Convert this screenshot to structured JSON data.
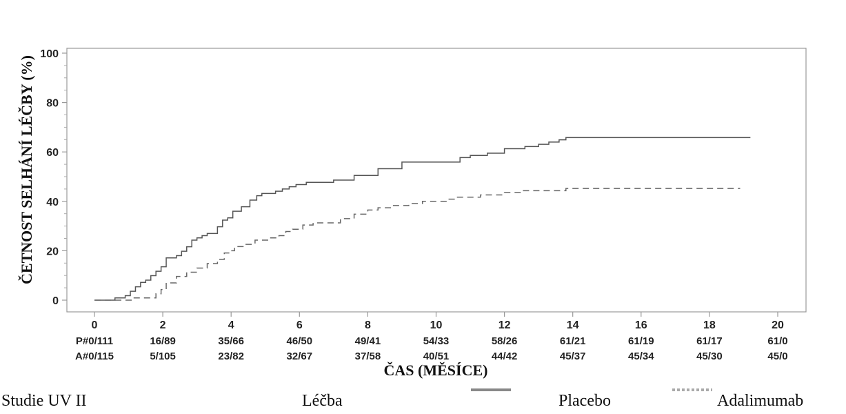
{
  "chart_data": {
    "type": "line",
    "title": "",
    "xlabel": "ČAS (MĚSÍCE)",
    "ylabel": "ČETNOST SELHÁNÍ LÉČBY (%)",
    "xlim": [
      0,
      20
    ],
    "ylim": [
      0,
      100
    ],
    "x_ticks": [
      "0",
      "2",
      "4",
      "6",
      "8",
      "10",
      "12",
      "14",
      "16",
      "18",
      "20"
    ],
    "y_ticks": [
      "0",
      "20",
      "40",
      "60",
      "80",
      "100"
    ],
    "grid": false,
    "series": [
      {
        "name": "Placebo",
        "style": "solid",
        "color": "#555555",
        "x": [
          0,
          0.6,
          0.9,
          1.05,
          1.2,
          1.35,
          1.5,
          1.65,
          1.8,
          1.95,
          2.1,
          2.4,
          2.55,
          2.7,
          2.85,
          3.0,
          3.15,
          3.3,
          3.6,
          3.75,
          3.9,
          4.05,
          4.3,
          4.55,
          4.75,
          4.9,
          5.3,
          5.5,
          5.7,
          5.9,
          6.2,
          6.5,
          7.0,
          7.6,
          8.3,
          9.0,
          10.0,
          10.7,
          11.0,
          11.5,
          12.0,
          12.6,
          13.0,
          13.3,
          13.6,
          13.8,
          19.2
        ],
        "y": [
          0,
          0.9,
          1.8,
          3.6,
          5.4,
          7.2,
          8.1,
          9.9,
          11.7,
          13.5,
          17.1,
          18.0,
          19.8,
          21.6,
          24.3,
          25.2,
          26.1,
          27.0,
          29.7,
          32.4,
          33.3,
          36.0,
          37.8,
          40.5,
          42.3,
          43.2,
          44.1,
          45.0,
          45.9,
          46.8,
          47.7,
          47.7,
          48.6,
          50.5,
          53.2,
          55.9,
          55.9,
          57.7,
          58.6,
          59.5,
          61.3,
          62.2,
          63.1,
          64.0,
          64.9,
          65.8,
          65.8
        ]
      },
      {
        "name": "Adalimumab",
        "style": "dashed",
        "color": "#666666",
        "x": [
          0,
          1.1,
          1.8,
          1.95,
          2.1,
          2.4,
          2.7,
          3.0,
          3.3,
          3.6,
          3.8,
          3.95,
          4.1,
          4.4,
          4.7,
          5.1,
          5.4,
          5.6,
          5.8,
          6.1,
          6.4,
          7.2,
          7.6,
          8.0,
          8.3,
          8.7,
          9.2,
          9.6,
          10.3,
          10.6,
          11.3,
          12.0,
          12.5,
          13.2,
          13.8,
          18.9
        ],
        "y": [
          0,
          0.9,
          2.6,
          4.3,
          7.0,
          9.6,
          11.3,
          13.0,
          14.8,
          16.5,
          19.1,
          20.0,
          21.7,
          22.6,
          24.3,
          25.2,
          26.1,
          27.8,
          28.7,
          30.4,
          31.3,
          33.0,
          34.8,
          36.5,
          37.4,
          38.3,
          39.1,
          40.0,
          40.9,
          41.7,
          42.6,
          43.5,
          44.3,
          44.3,
          45.2,
          45.2
        ]
      }
    ],
    "risk_table": {
      "rows": [
        {
          "label": "P#",
          "values": [
            "0/111",
            "16/89",
            "35/66",
            "46/50",
            "49/41",
            "54/33",
            "58/26",
            "61/21",
            "61/19",
            "61/17",
            "61/0"
          ]
        },
        {
          "label": "A#",
          "values": [
            "0/115",
            "5/105",
            "23/82",
            "32/67",
            "37/58",
            "40/51",
            "44/42",
            "45/37",
            "45/34",
            "45/30",
            "45/0"
          ]
        }
      ]
    }
  },
  "footer": {
    "study": "Studie UV II",
    "treatment_label": "Léčba",
    "legend": [
      {
        "name": "Placebo",
        "style": "solid"
      },
      {
        "name": "Adalimumab",
        "style": "dashed"
      }
    ]
  }
}
